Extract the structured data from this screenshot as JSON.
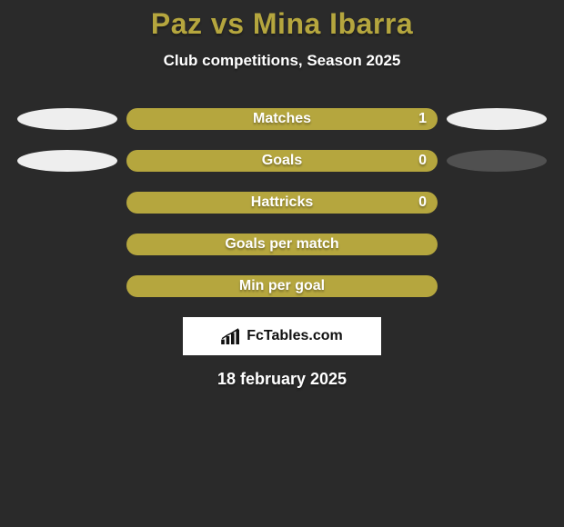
{
  "background_color": "#2a2a2a",
  "title": {
    "text": "Paz vs Mina Ibarra",
    "color": "#b5a63e",
    "fontsize": 32
  },
  "subtitle": {
    "text": "Club competitions, Season 2025",
    "color": "#ffffff",
    "fontsize": 17
  },
  "label_text_color": "#ffffff",
  "value_text_color": "#ffffff",
  "rows": [
    {
      "label": "Matches",
      "value": "1",
      "bar_color": "#b5a63e",
      "left_ellipse": "#eeeeee",
      "right_ellipse": "#eeeeee"
    },
    {
      "label": "Goals",
      "value": "0",
      "bar_color": "#b5a63e",
      "left_ellipse": "#eeeeee",
      "right_ellipse": "#505050"
    },
    {
      "label": "Hattricks",
      "value": "0",
      "bar_color": "#b5a63e",
      "left_ellipse": null,
      "right_ellipse": null
    },
    {
      "label": "Goals per match",
      "value": "",
      "bar_color": "#b5a63e",
      "left_ellipse": null,
      "right_ellipse": null
    },
    {
      "label": "Min per goal",
      "value": "",
      "bar_color": "#b5a63e",
      "left_ellipse": null,
      "right_ellipse": null
    }
  ],
  "logo": {
    "box_bg": "#ffffff",
    "text": "FcTables.com",
    "text_color": "#111111",
    "icon_color": "#111111"
  },
  "date": {
    "text": "18 february 2025",
    "color": "#ffffff",
    "fontsize": 18
  }
}
